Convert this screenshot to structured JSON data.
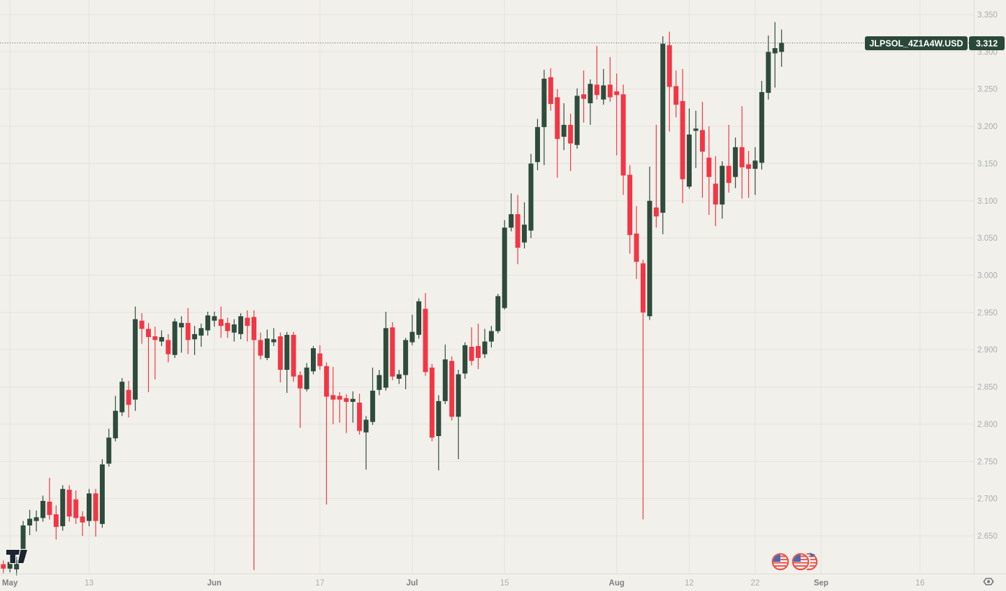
{
  "price_label": {
    "symbol": "JLPSOL_4Z1A4W.USD",
    "price": "3.312"
  },
  "colors": {
    "background": "#f1f0ea",
    "grid": "#e4e3db",
    "axis_border": "#dcdbd3",
    "axis_text": "#abadb0",
    "axis_text_major": "#7d8085",
    "candle_up": "#2e4b3c",
    "candle_down": "#f23645",
    "badge_bg": "#2a4839",
    "badge_text": "#ffffff",
    "last_price_line": "#4a5550",
    "logo": "#1d2330",
    "flag_ring": "#e4574d",
    "flag_stripe": "#ef5c52",
    "flag_canton": "#4a69b1",
    "gear": "#70737a"
  },
  "axes": {
    "y_ticks": [
      "3.350",
      "3.300",
      "3.250",
      "3.200",
      "3.150",
      "3.100",
      "3.050",
      "3.000",
      "2.950",
      "2.900",
      "2.850",
      "2.800",
      "2.750",
      "2.700",
      "2.650"
    ],
    "x_ticks": [
      {
        "label": "May",
        "index": 1,
        "major": true
      },
      {
        "label": "13",
        "index": 13,
        "major": false
      },
      {
        "label": "Jun",
        "index": 32,
        "major": true
      },
      {
        "label": "17",
        "index": 48,
        "major": false
      },
      {
        "label": "Jul",
        "index": 62,
        "major": true
      },
      {
        "label": "15",
        "index": 76,
        "major": false
      },
      {
        "label": "Aug",
        "index": 93,
        "major": true
      },
      {
        "label": "12",
        "index": 104,
        "major": false
      },
      {
        "label": "22",
        "index": 114,
        "major": false
      },
      {
        "label": "Sep",
        "index": 124,
        "major": true
      },
      {
        "label": "16",
        "index": 139,
        "major": false
      }
    ]
  },
  "icons": {
    "gear": "axis-settings-gear-icon",
    "flag_single": "us-flag-event-icon",
    "flag_stack": "us-flag-event-stack-icon",
    "logo": "tradingview-logo"
  },
  "chart_data": {
    "type": "candlestick",
    "symbol": "JLPSOL_4Z1A4W.USD",
    "last_price": 3.312,
    "interval": "1D",
    "date_range": [
      "Apr 30",
      "Aug 26"
    ],
    "ylim": [
      2.6,
      3.37
    ],
    "grid": true,
    "columns": [
      "date",
      "open",
      "high",
      "low",
      "close"
    ],
    "candles": [
      [
        "Apr 30",
        2.612,
        2.617,
        2.6,
        2.606
      ],
      [
        "May 1",
        2.606,
        2.621,
        2.601,
        2.615
      ],
      [
        "May 2",
        2.605,
        2.622,
        2.597,
        2.617
      ],
      [
        "May 3",
        2.63,
        2.67,
        2.626,
        2.664
      ],
      [
        "May 4",
        2.664,
        2.685,
        2.651,
        2.673
      ],
      [
        "May 5",
        2.67,
        2.684,
        2.656,
        2.675
      ],
      [
        "May 6",
        2.674,
        2.704,
        2.669,
        2.697
      ],
      [
        "May 7",
        2.696,
        2.728,
        2.672,
        2.678
      ],
      [
        "May 8",
        2.679,
        2.691,
        2.645,
        2.662
      ],
      [
        "May 9",
        2.663,
        2.718,
        2.657,
        2.713
      ],
      [
        "May 10",
        2.712,
        2.718,
        2.669,
        2.676
      ],
      [
        "May 11",
        2.699,
        2.711,
        2.666,
        2.674
      ],
      [
        "May 12",
        2.676,
        2.683,
        2.65,
        2.668
      ],
      [
        "May 13",
        2.67,
        2.713,
        2.663,
        2.707
      ],
      [
        "May 14",
        2.707,
        2.713,
        2.649,
        2.67
      ],
      [
        "May 15",
        2.666,
        2.753,
        2.661,
        2.746
      ],
      [
        "May 16",
        2.747,
        2.794,
        2.743,
        2.782
      ],
      [
        "May 17",
        2.781,
        2.838,
        2.777,
        2.818
      ],
      [
        "May 18",
        2.816,
        2.862,
        2.811,
        2.857
      ],
      [
        "May 19",
        2.846,
        2.858,
        2.809,
        2.826
      ],
      [
        "May 20",
        2.833,
        2.958,
        2.818,
        2.941
      ],
      [
        "May 21",
        2.939,
        2.949,
        2.908,
        2.928
      ],
      [
        "May 22",
        2.928,
        2.936,
        2.843,
        2.917
      ],
      [
        "May 23",
        2.918,
        2.931,
        2.86,
        2.913
      ],
      [
        "May 24",
        2.911,
        2.926,
        2.905,
        2.917
      ],
      [
        "May 25",
        2.913,
        2.921,
        2.883,
        2.894
      ],
      [
        "May 26",
        2.893,
        2.942,
        2.889,
        2.938
      ],
      [
        "May 27",
        2.93,
        2.945,
        2.896,
        2.936
      ],
      [
        "May 28",
        2.936,
        2.956,
        2.894,
        2.913
      ],
      [
        "May 29",
        2.914,
        2.932,
        2.893,
        2.921
      ],
      [
        "May 30",
        2.919,
        2.935,
        2.904,
        2.929
      ],
      [
        "May 31",
        2.926,
        2.951,
        2.919,
        2.946
      ],
      [
        "Jun 1",
        2.939,
        2.951,
        2.931,
        2.945
      ],
      [
        "Jun 2",
        2.941,
        2.958,
        2.916,
        2.932
      ],
      [
        "Jun 3",
        2.936,
        2.943,
        2.916,
        2.925
      ],
      [
        "Jun 4",
        2.923,
        2.941,
        2.911,
        2.934
      ],
      [
        "Jun 5",
        2.921,
        2.949,
        2.914,
        2.945
      ],
      [
        "Jun 6",
        2.943,
        2.953,
        2.911,
        2.932
      ],
      [
        "Jun 7",
        2.944,
        2.953,
        2.604,
        2.913
      ],
      [
        "Jun 8",
        2.913,
        2.923,
        2.887,
        2.892
      ],
      [
        "Jun 9",
        2.889,
        2.927,
        2.886,
        2.915
      ],
      [
        "Jun 10",
        2.91,
        2.929,
        2.905,
        2.914
      ],
      [
        "Jun 11",
        2.918,
        2.923,
        2.856,
        2.873
      ],
      [
        "Jun 12",
        2.873,
        2.924,
        2.842,
        2.92
      ],
      [
        "Jun 13",
        2.92,
        2.924,
        2.857,
        2.864
      ],
      [
        "Jun 14",
        2.866,
        2.871,
        2.795,
        2.848
      ],
      [
        "Jun 15",
        2.847,
        2.882,
        2.844,
        2.876
      ],
      [
        "Jun 16",
        2.871,
        2.905,
        2.867,
        2.902
      ],
      [
        "Jun 17",
        2.895,
        2.906,
        2.873,
        2.878
      ],
      [
        "Jun 18",
        2.878,
        2.883,
        2.692,
        2.837
      ],
      [
        "Jun 19",
        2.839,
        2.877,
        2.8,
        2.833
      ],
      [
        "Jun 20",
        2.838,
        2.843,
        2.802,
        2.833
      ],
      [
        "Jun 21",
        2.835,
        2.84,
        2.788,
        2.83
      ],
      [
        "Jun 22",
        2.83,
        2.844,
        2.802,
        2.834
      ],
      [
        "Jun 23",
        2.829,
        2.841,
        2.786,
        2.791
      ],
      [
        "Jun 24",
        2.789,
        2.811,
        2.739,
        2.806
      ],
      [
        "Jun 25",
        2.803,
        2.876,
        2.799,
        2.845
      ],
      [
        "Jun 26",
        2.846,
        2.873,
        2.839,
        2.866
      ],
      [
        "Jun 27",
        2.849,
        2.951,
        2.845,
        2.929
      ],
      [
        "Jun 28",
        2.93,
        2.937,
        2.859,
        2.864
      ],
      [
        "Jun 29",
        2.861,
        2.873,
        2.854,
        2.867
      ],
      [
        "Jun 30",
        2.866,
        2.916,
        2.847,
        2.913
      ],
      [
        "Jul 1",
        2.91,
        2.947,
        2.906,
        2.924
      ],
      [
        "Jul 2",
        2.92,
        2.969,
        2.915,
        2.965
      ],
      [
        "Jul 3",
        2.955,
        2.976,
        2.865,
        2.87
      ],
      [
        "Jul 4",
        2.876,
        2.881,
        2.777,
        2.782
      ],
      [
        "Jul 5",
        2.784,
        2.839,
        2.738,
        2.831
      ],
      [
        "Jul 6",
        2.831,
        2.907,
        2.827,
        2.887
      ],
      [
        "Jul 7",
        2.885,
        2.891,
        2.805,
        2.81
      ],
      [
        "Jul 8",
        2.81,
        2.873,
        2.753,
        2.867
      ],
      [
        "Jul 9",
        2.868,
        2.91,
        2.861,
        2.906
      ],
      [
        "Jul 10",
        2.904,
        2.93,
        2.879,
        2.885
      ],
      [
        "Jul 11",
        2.905,
        2.935,
        2.874,
        2.889
      ],
      [
        "Jul 12",
        2.894,
        2.928,
        2.889,
        2.911
      ],
      [
        "Jul 13",
        2.911,
        2.932,
        2.903,
        2.925
      ],
      [
        "Jul 14",
        2.925,
        2.975,
        2.922,
        2.972
      ],
      [
        "Jul 15",
        2.956,
        3.074,
        2.954,
        3.064
      ],
      [
        "Jul 16",
        3.064,
        3.11,
        3.059,
        3.082
      ],
      [
        "Jul 17",
        3.082,
        3.108,
        3.015,
        3.037
      ],
      [
        "Jul 18",
        3.044,
        3.098,
        3.036,
        3.068
      ],
      [
        "Jul 19",
        3.06,
        3.163,
        3.05,
        3.15
      ],
      [
        "Jul 20",
        3.152,
        3.21,
        3.141,
        3.199
      ],
      [
        "Jul 21",
        3.199,
        3.276,
        3.148,
        3.264
      ],
      [
        "Jul 22",
        3.266,
        3.278,
        3.221,
        3.23
      ],
      [
        "Jul 23",
        3.239,
        3.25,
        3.131,
        3.183
      ],
      [
        "Jul 24",
        3.186,
        3.231,
        3.168,
        3.202
      ],
      [
        "Jul 25",
        3.202,
        3.217,
        3.14,
        3.177
      ],
      [
        "Jul 26",
        3.175,
        3.251,
        3.17,
        3.241
      ],
      [
        "Jul 27",
        3.243,
        3.275,
        3.205,
        3.237
      ],
      [
        "Jul 28",
        3.231,
        3.263,
        3.202,
        3.257
      ],
      [
        "Jul 29",
        3.256,
        3.308,
        3.236,
        3.242
      ],
      [
        "Jul 30",
        3.236,
        3.277,
        3.229,
        3.255
      ],
      [
        "Jul 31",
        3.256,
        3.293,
        3.233,
        3.239
      ],
      [
        "Aug 1",
        3.247,
        3.271,
        3.161,
        3.242
      ],
      [
        "Aug 2",
        3.243,
        3.256,
        3.108,
        3.134
      ],
      [
        "Aug 3",
        3.135,
        3.148,
        3.029,
        3.054
      ],
      [
        "Aug 4",
        3.056,
        3.093,
        2.995,
        3.018
      ],
      [
        "Aug 5",
        3.016,
        3.021,
        2.672,
        2.95
      ],
      [
        "Aug 6",
        2.945,
        3.146,
        2.94,
        3.1
      ],
      [
        "Aug 7",
        3.091,
        3.202,
        3.064,
        3.079
      ],
      [
        "Aug 8",
        3.084,
        3.321,
        3.055,
        3.311
      ],
      [
        "Aug 9",
        3.309,
        3.327,
        3.193,
        3.253
      ],
      [
        "Aug 10",
        3.254,
        3.275,
        3.212,
        3.229
      ],
      [
        "Aug 11",
        3.234,
        3.277,
        3.097,
        3.129
      ],
      [
        "Aug 12",
        3.119,
        3.224,
        3.116,
        3.189
      ],
      [
        "Aug 13",
        3.194,
        3.221,
        3.144,
        3.197
      ],
      [
        "Aug 14",
        3.195,
        3.233,
        3.104,
        3.166
      ],
      [
        "Aug 15",
        3.158,
        3.2,
        3.081,
        3.132
      ],
      [
        "Aug 16",
        3.123,
        3.16,
        3.066,
        3.095
      ],
      [
        "Aug 17",
        3.095,
        3.153,
        3.076,
        3.147
      ],
      [
        "Aug 18",
        3.147,
        3.202,
        3.111,
        3.124
      ],
      [
        "Aug 19",
        3.132,
        3.185,
        3.117,
        3.172
      ],
      [
        "Aug 20",
        3.172,
        3.227,
        3.103,
        3.145
      ],
      [
        "Aug 21",
        3.149,
        3.167,
        3.104,
        3.143
      ],
      [
        "Aug 22",
        3.143,
        3.172,
        3.108,
        3.154
      ],
      [
        "Aug 23",
        3.151,
        3.261,
        3.142,
        3.246
      ],
      [
        "Aug 24",
        3.245,
        3.322,
        3.236,
        3.3
      ],
      [
        "Aug 25",
        3.298,
        3.34,
        3.252,
        3.305
      ],
      [
        "Aug 26",
        3.3,
        3.33,
        3.28,
        3.312
      ]
    ]
  }
}
